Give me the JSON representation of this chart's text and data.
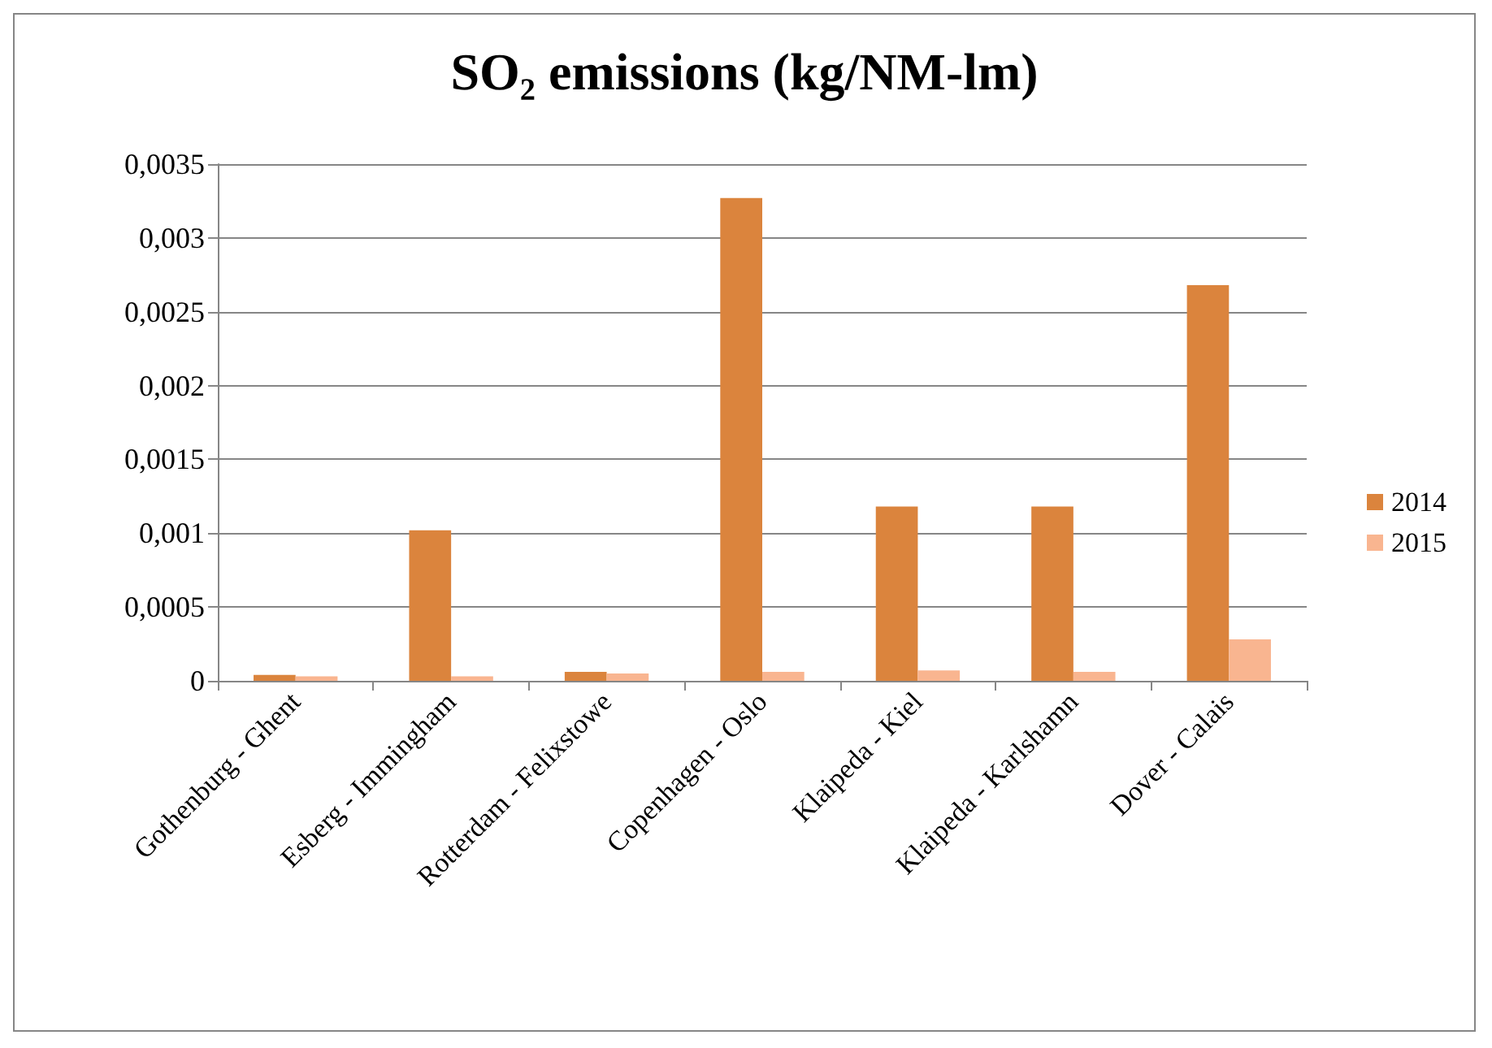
{
  "chart_data": {
    "type": "bar",
    "title": "SO₂ emissions (kg/NM-lm)",
    "categories": [
      "Gothenburg - Ghent",
      "Esberg - Immingham",
      "Rotterdam - Felixstowe",
      "Copenhagen - Oslo",
      "Klaipeda - Kiel",
      "Klaipeda - Karlshamn",
      "Dover - Calais"
    ],
    "series": [
      {
        "name": "2014",
        "color": "#db843d",
        "values": [
          4e-05,
          0.00102,
          6e-05,
          0.00327,
          0.00118,
          0.00118,
          0.00268
        ]
      },
      {
        "name": "2015",
        "color": "#f9b590",
        "values": [
          3e-05,
          3e-05,
          5e-05,
          6e-05,
          7e-05,
          6e-05,
          0.00028
        ]
      }
    ],
    "ylim": [
      0,
      0.0035
    ],
    "yticks": [
      0,
      {
        "value": 0.0005,
        "label": "0,0005"
      },
      {
        "value": 0.001,
        "label": "0,001"
      },
      {
        "value": 0.0015,
        "label": "0,0015"
      },
      {
        "value": 0.002,
        "label": "0,002"
      },
      {
        "value": 0.0025,
        "label": "0,0025"
      },
      {
        "value": 0.003,
        "label": "0,003"
      },
      {
        "value": 0.0035,
        "label": "0,0035"
      }
    ],
    "grid": "y",
    "legend": "right"
  }
}
